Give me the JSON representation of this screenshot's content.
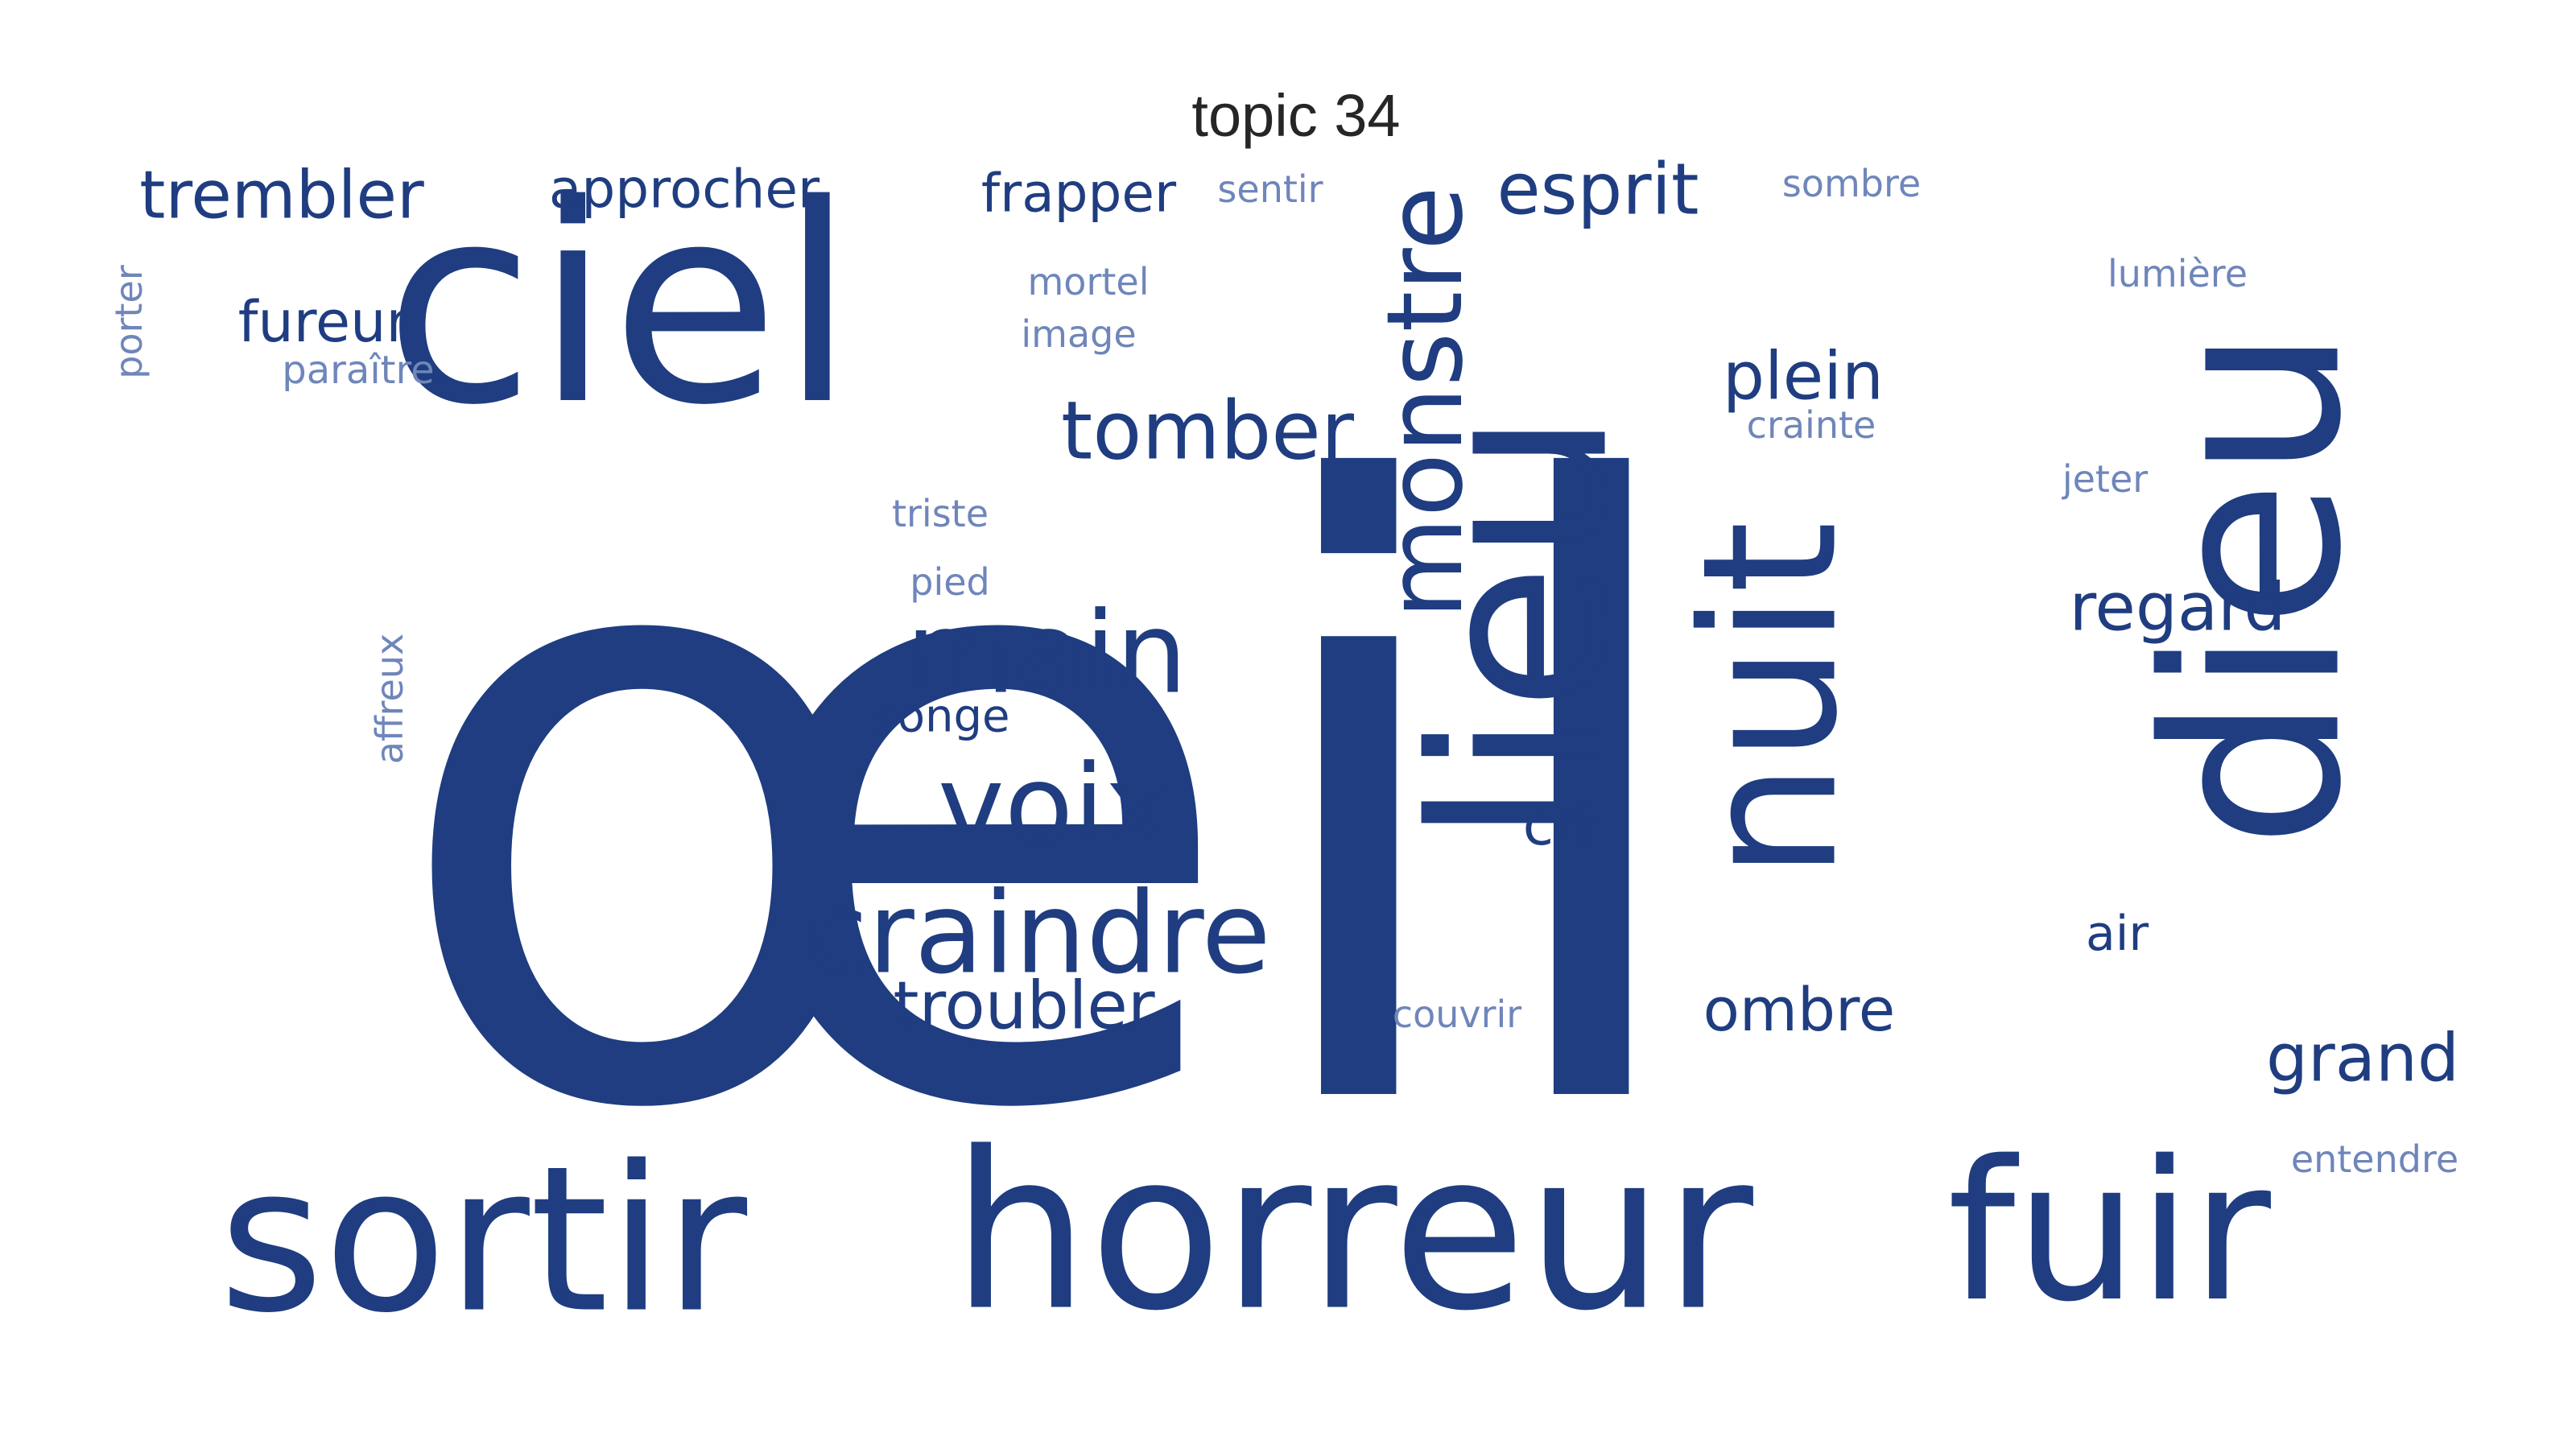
{
  "title": "topic 34",
  "style": {
    "word_color": "#1f3d80",
    "light_word_color": "#6f86bb",
    "background": "#ffffff"
  },
  "words": [
    {
      "text": "œil",
      "weight": 100,
      "orientation": "horizontal"
    },
    {
      "text": "ciel",
      "weight": 38,
      "orientation": "horizontal"
    },
    {
      "text": "dieu",
      "weight": 36,
      "orientation": "vertical"
    },
    {
      "text": "sortir",
      "weight": 28,
      "orientation": "horizontal"
    },
    {
      "text": "horreur",
      "weight": 30,
      "orientation": "horizontal"
    },
    {
      "text": "fuir",
      "weight": 25,
      "orientation": "horizontal"
    },
    {
      "text": "lieu",
      "weight": 27,
      "orientation": "vertical"
    },
    {
      "text": "nuit",
      "weight": 21,
      "orientation": "vertical"
    },
    {
      "text": "monstre",
      "weight": 13,
      "orientation": "vertical"
    },
    {
      "text": "main",
      "weight": 12,
      "orientation": "horizontal"
    },
    {
      "text": "voix",
      "weight": 12,
      "orientation": "horizontal"
    },
    {
      "text": "craindre",
      "weight": 12,
      "orientation": "horizontal"
    },
    {
      "text": "tomber",
      "weight": 9,
      "orientation": "horizontal"
    },
    {
      "text": "esprit",
      "weight": 8,
      "orientation": "horizontal"
    },
    {
      "text": "plein",
      "weight": 7,
      "orientation": "horizontal"
    },
    {
      "text": "trembler",
      "weight": 7,
      "orientation": "horizontal"
    },
    {
      "text": "troubler",
      "weight": 7,
      "orientation": "horizontal"
    },
    {
      "text": "regard",
      "weight": 7,
      "orientation": "horizontal"
    },
    {
      "text": "grand",
      "weight": 7,
      "orientation": "horizontal"
    },
    {
      "text": "ombre",
      "weight": 6,
      "orientation": "horizontal"
    },
    {
      "text": "fureur",
      "weight": 6,
      "orientation": "horizontal"
    },
    {
      "text": "approcher",
      "weight": 6,
      "orientation": "horizontal"
    },
    {
      "text": "frapper",
      "weight": 6,
      "orientation": "horizontal"
    },
    {
      "text": "cri",
      "weight": 6,
      "orientation": "horizontal"
    },
    {
      "text": "air",
      "weight": 5,
      "orientation": "horizontal"
    },
    {
      "text": "songe",
      "weight": 4,
      "orientation": "horizontal"
    },
    {
      "text": "paraître",
      "weight": 3,
      "orientation": "horizontal"
    },
    {
      "text": "mortel",
      "weight": 3,
      "orientation": "horizontal"
    },
    {
      "text": "image",
      "weight": 3,
      "orientation": "horizontal"
    },
    {
      "text": "triste",
      "weight": 3,
      "orientation": "horizontal"
    },
    {
      "text": "pied",
      "weight": 3,
      "orientation": "horizontal"
    },
    {
      "text": "sentir",
      "weight": 3,
      "orientation": "horizontal"
    },
    {
      "text": "sombre",
      "weight": 3,
      "orientation": "horizontal"
    },
    {
      "text": "lumière",
      "weight": 3,
      "orientation": "horizontal"
    },
    {
      "text": "crainte",
      "weight": 3,
      "orientation": "horizontal"
    },
    {
      "text": "jeter",
      "weight": 3,
      "orientation": "horizontal"
    },
    {
      "text": "couvrir",
      "weight": 3,
      "orientation": "horizontal"
    },
    {
      "text": "entendre",
      "weight": 3,
      "orientation": "horizontal"
    },
    {
      "text": "porter",
      "weight": 3,
      "orientation": "vertical"
    },
    {
      "text": "affreux",
      "weight": 3,
      "orientation": "vertical"
    }
  ]
}
